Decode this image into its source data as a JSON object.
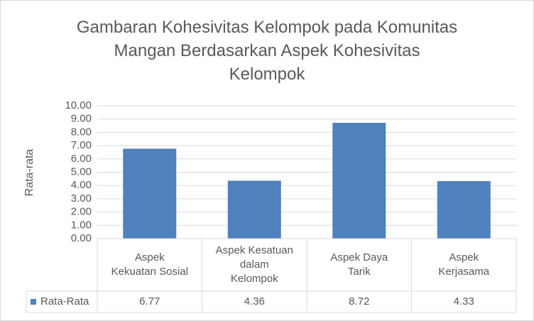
{
  "chart_data": {
    "type": "bar",
    "title": "Gambaran Kohesivitas Kelompok pada Komunitas\nMangan Berdasarkan Aspek Kohesivitas\nKelompok",
    "y_label": "Rata-rata",
    "categories": [
      "Aspek\nKekuatan Sosial",
      "Aspek Kesatuan\ndalam\nKelompok",
      "Aspek Daya\nTarik",
      "Aspek\nKerjasama"
    ],
    "series": [
      {
        "name": "Rata-Rata",
        "color": "#4f81bd",
        "values": [
          6.77,
          4.36,
          8.72,
          4.33
        ]
      }
    ],
    "ylim": [
      0,
      10
    ],
    "yticks": [
      {
        "value": 0,
        "label": "0.00"
      },
      {
        "value": 1,
        "label": "1.00"
      },
      {
        "value": 2,
        "label": "2.00"
      },
      {
        "value": 3,
        "label": "3.00"
      },
      {
        "value": 4,
        "label": "4.00"
      },
      {
        "value": 5,
        "label": "5.00"
      },
      {
        "value": 6,
        "label": "6.00"
      },
      {
        "value": 7,
        "label": "7.00"
      },
      {
        "value": 8,
        "label": "8.00"
      },
      {
        "value": 9,
        "label": "9.00"
      },
      {
        "value": 10,
        "label": "10.00"
      }
    ],
    "grid": true,
    "data_table": true
  }
}
